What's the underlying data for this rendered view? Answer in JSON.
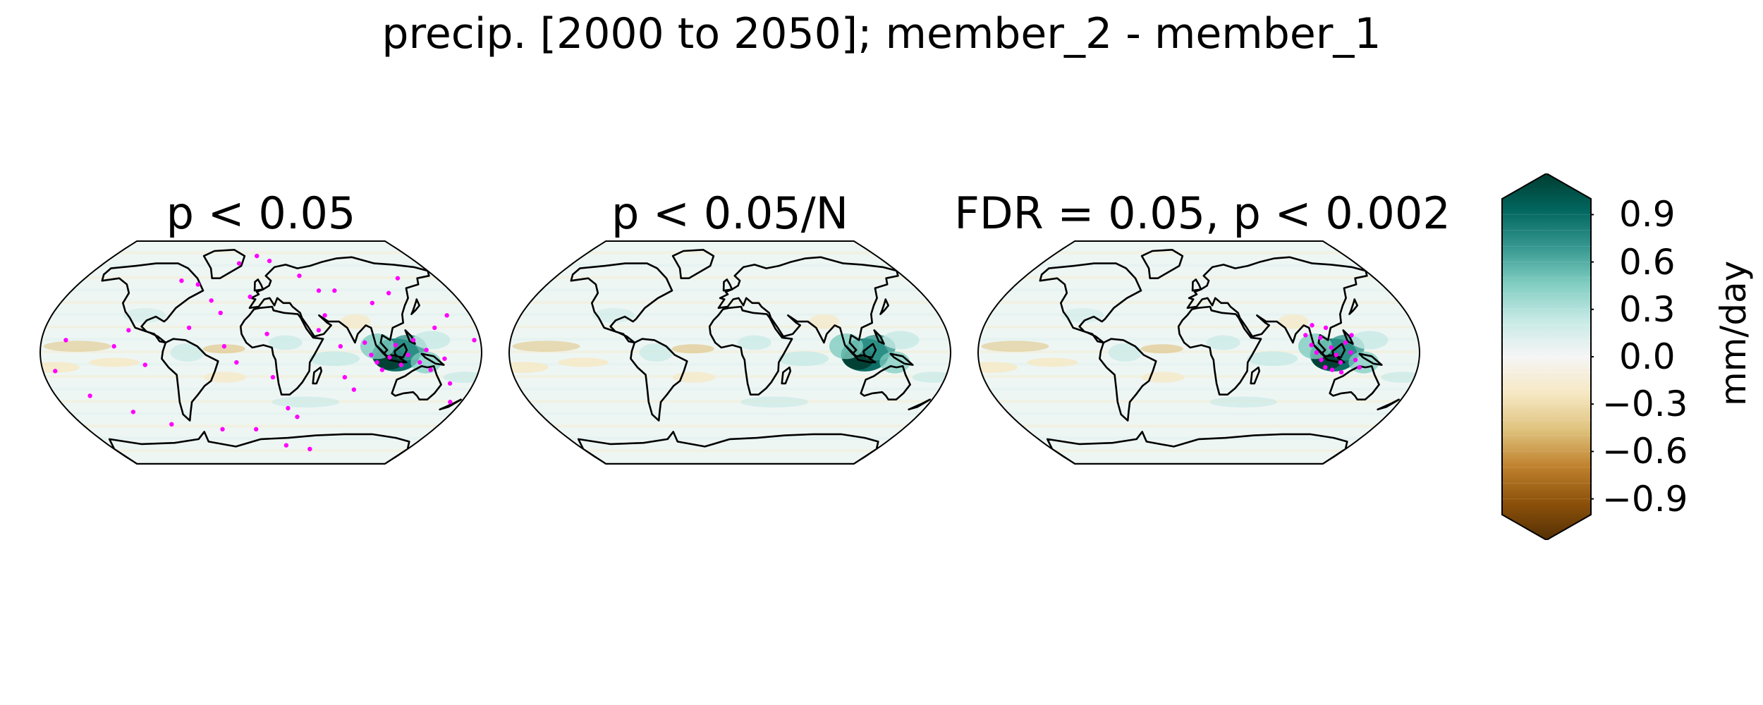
{
  "figure": {
    "title": "precip. [2000 to 2050]; member_2 - member_1"
  },
  "panels": [
    {
      "title": "p < 0.05",
      "significance": "dense"
    },
    {
      "title": "p < 0.05/N",
      "significance": "none"
    },
    {
      "title": "FDR = 0.05, p < 0.002",
      "significance": "indo_pacific"
    }
  ],
  "colorbar": {
    "label": "mm/day",
    "ticks": [
      "0.9",
      "0.6",
      "0.3",
      "0.0",
      "−0.3",
      "−0.6",
      "−0.9"
    ],
    "tick_values": [
      0.9,
      0.6,
      0.3,
      0.0,
      -0.3,
      -0.6,
      -0.9
    ],
    "range": [
      -1.0,
      1.0
    ],
    "extend": "both",
    "colormap": "BrBG",
    "colors": [
      "#003c30",
      "#01665e",
      "#35978f",
      "#80cdc1",
      "#c7eae5",
      "#f5f5f5",
      "#f6e8c3",
      "#dfc27d",
      "#bf812d",
      "#8c510a",
      "#543005"
    ]
  },
  "stipple_color": "#ff00ff",
  "coastline_color": "#000000"
}
